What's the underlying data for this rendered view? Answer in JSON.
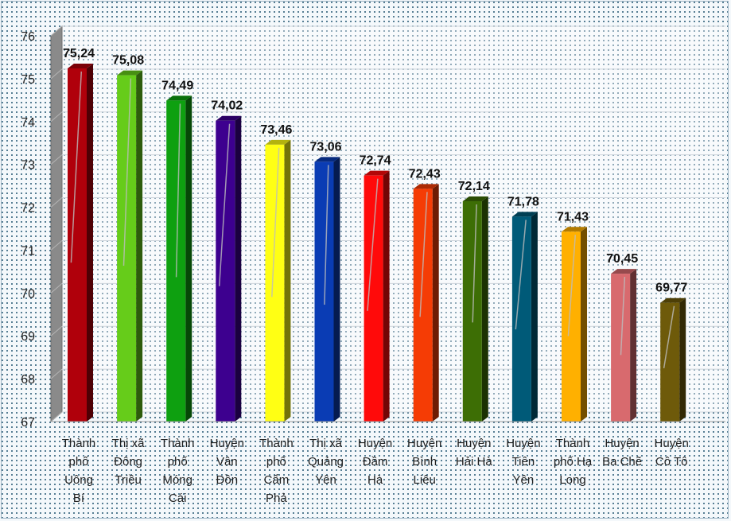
{
  "chart_data": {
    "type": "bar",
    "title": "",
    "xlabel": "",
    "ylabel": "",
    "ylim": [
      67,
      76
    ],
    "yticks": [
      67,
      68,
      69,
      70,
      71,
      72,
      73,
      74,
      75,
      76
    ],
    "grid": true,
    "style": "3d-columns",
    "categories": [
      "Thành phố Uông Bí",
      "Thị xã Đông Triều",
      "Thành phố Móng Cái",
      "Huyện Vân Đồn",
      "Thành phố Cẩm Phả",
      "Thị xã Quảng Yên",
      "Huyện Đầm Hà",
      "Huyện Bình Liêu",
      "Huyện Hải Hà",
      "Huyện Tiên Yên",
      "Thành phố Hạ Long",
      "Huyện Ba Chẽ",
      "Huyện Cô Tô"
    ],
    "category_lines": [
      [
        "Thành",
        "phố",
        "Uông",
        "Bí"
      ],
      [
        "Thị xã",
        "Đông",
        "Triều"
      ],
      [
        "Thành",
        "phố",
        "Móng",
        "Cái"
      ],
      [
        "Huyện",
        "Vân",
        "Đồn"
      ],
      [
        "Thành",
        "phố",
        "Cẩm",
        "Phả"
      ],
      [
        "Thị xã",
        "Quảng",
        "Yên"
      ],
      [
        "Huyện",
        "Đầm",
        "Hà"
      ],
      [
        "Huyện",
        "Bình",
        "Liêu"
      ],
      [
        "Huyện",
        "Hải Hà"
      ],
      [
        "Huyện",
        "Tiên",
        "Yên"
      ],
      [
        "Thành",
        "phố Hạ",
        "Long"
      ],
      [
        "Huyện",
        "Ba Chẽ"
      ],
      [
        "Huyện",
        "Cô Tô"
      ]
    ],
    "values": [
      75.24,
      75.08,
      74.49,
      74.02,
      73.46,
      73.06,
      72.74,
      72.43,
      72.14,
      71.78,
      71.43,
      70.45,
      69.77
    ],
    "value_labels": [
      "75,24",
      "75,08",
      "74,49",
      "74,02",
      "73,46",
      "73,06",
      "72,74",
      "72,43",
      "72,14",
      "71,78",
      "71,43",
      "70,45",
      "69,77"
    ],
    "colors": [
      "#b0000b",
      "#66cc1a",
      "#0ea010",
      "#3d008f",
      "#ffff14",
      "#0a3cb4",
      "#ff0a0a",
      "#f53c05",
      "#3d6e05",
      "#005a78",
      "#ffb000",
      "#d86a6e",
      "#6e5a0a"
    ]
  }
}
